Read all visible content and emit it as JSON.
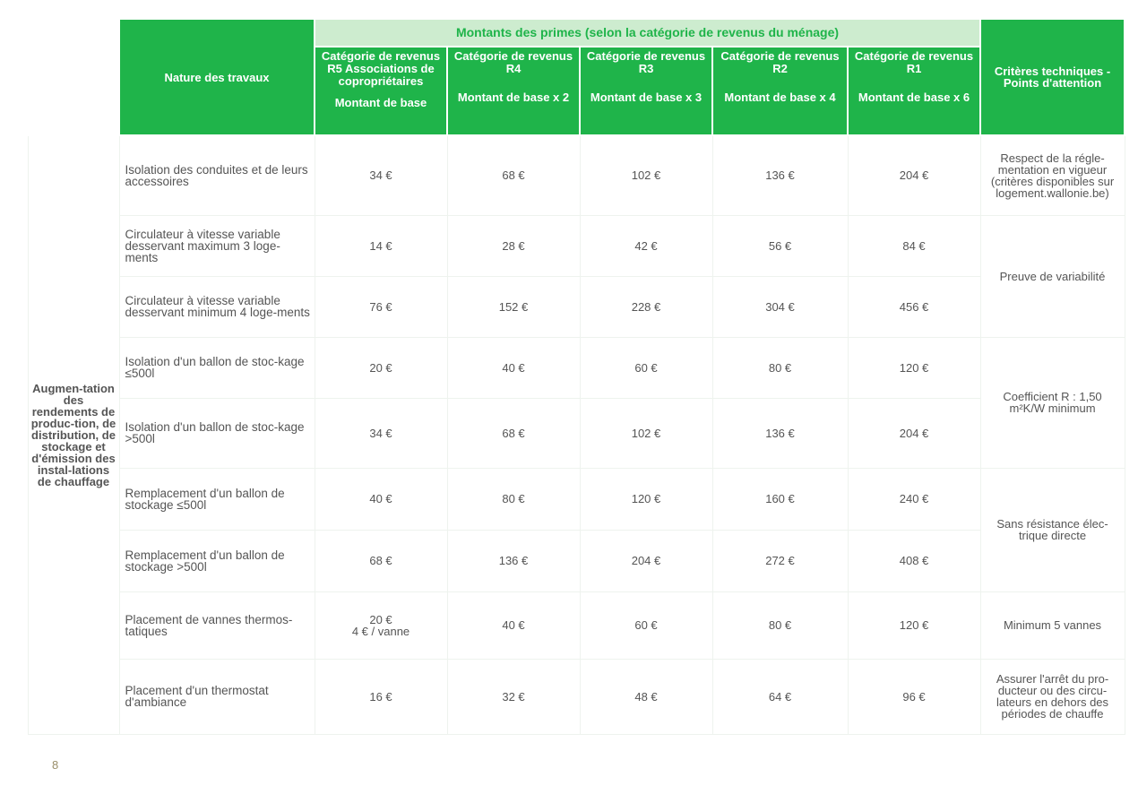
{
  "header": {
    "nature_label": "Nature des travaux",
    "super_label": "Montants des primes (selon la catégorie de revenus du ménage)",
    "criteria_label": "Critères techniques  - Points d'attention",
    "categories": [
      {
        "label": "Catégorie de revenus R5  Associations de copropriétaires",
        "multiplier": "Montant de base"
      },
      {
        "label": "Catégorie de revenus R4",
        "multiplier": "Montant de base x 2"
      },
      {
        "label": "Catégorie de revenus R3",
        "multiplier": "Montant de base x 3"
      },
      {
        "label": "Catégorie de revenus R2",
        "multiplier": "Montant de base x 4"
      },
      {
        "label": "Catégorie de revenus R1",
        "multiplier": "Montant de base x 6"
      }
    ]
  },
  "group_label": "Augmen-tation des rendements de produc-tion, de distribution, de stockage et d'émission des instal-lations de chauffage",
  "rows": [
    {
      "nature": "Isolation des conduites et de leurs accessoires",
      "values": [
        "34 €",
        "68 €",
        "102 €",
        "136 €",
        "204 €"
      ]
    },
    {
      "nature": "Circulateur à vitesse variable desservant maximum 3 loge-ments",
      "values": [
        "14 €",
        "28 €",
        "42 €",
        "56 €",
        "84 €"
      ]
    },
    {
      "nature": "Circulateur à vitesse variable desservant minimum 4 loge-ments",
      "values": [
        "76 €",
        "152 €",
        "228 €",
        "304 €",
        "456 €"
      ]
    },
    {
      "nature": "Isolation d'un ballon de stoc-kage ≤500l",
      "values": [
        "20 €",
        "40 €",
        "60 €",
        "80 €",
        "120 €"
      ]
    },
    {
      "nature": "Isolation d'un ballon de stoc-kage >500l",
      "values": [
        "34 €",
        "68 €",
        "102 €",
        "136 €",
        "204 €"
      ]
    },
    {
      "nature": "Remplacement d'un ballon de stockage ≤500l",
      "values": [
        "40 €",
        "80 €",
        "120 €",
        "160 €",
        "240 €"
      ]
    },
    {
      "nature": "Remplacement d'un ballon de stockage >500l",
      "values": [
        "68 €",
        "136 €",
        "204 €",
        "272 €",
        "408 €"
      ]
    },
    {
      "nature": "Placement de vannes thermos-tatiques",
      "values": [
        "20 €",
        "40 €",
        "60 €",
        "80 €",
        "120 €"
      ],
      "extra": "4 € / vanne"
    },
    {
      "nature": "Placement d'un thermostat d'ambiance",
      "values": [
        "16 €",
        "32 €",
        "48 €",
        "64 €",
        "96 €"
      ]
    }
  ],
  "criteria": [
    "Respect de la régle-mentation en vigueur (critères disponibles sur logement.wallonie.be)",
    "Preuve de variabilité",
    "Coefficient R : 1,50 m²K/W minimum",
    "Sans résistance élec-trique directe",
    "Minimum 5 vannes",
    "Assurer l'arrêt du pro-ducteur ou des circu-lateurs en dehors des périodes de chauffe"
  ],
  "page_number": "8"
}
